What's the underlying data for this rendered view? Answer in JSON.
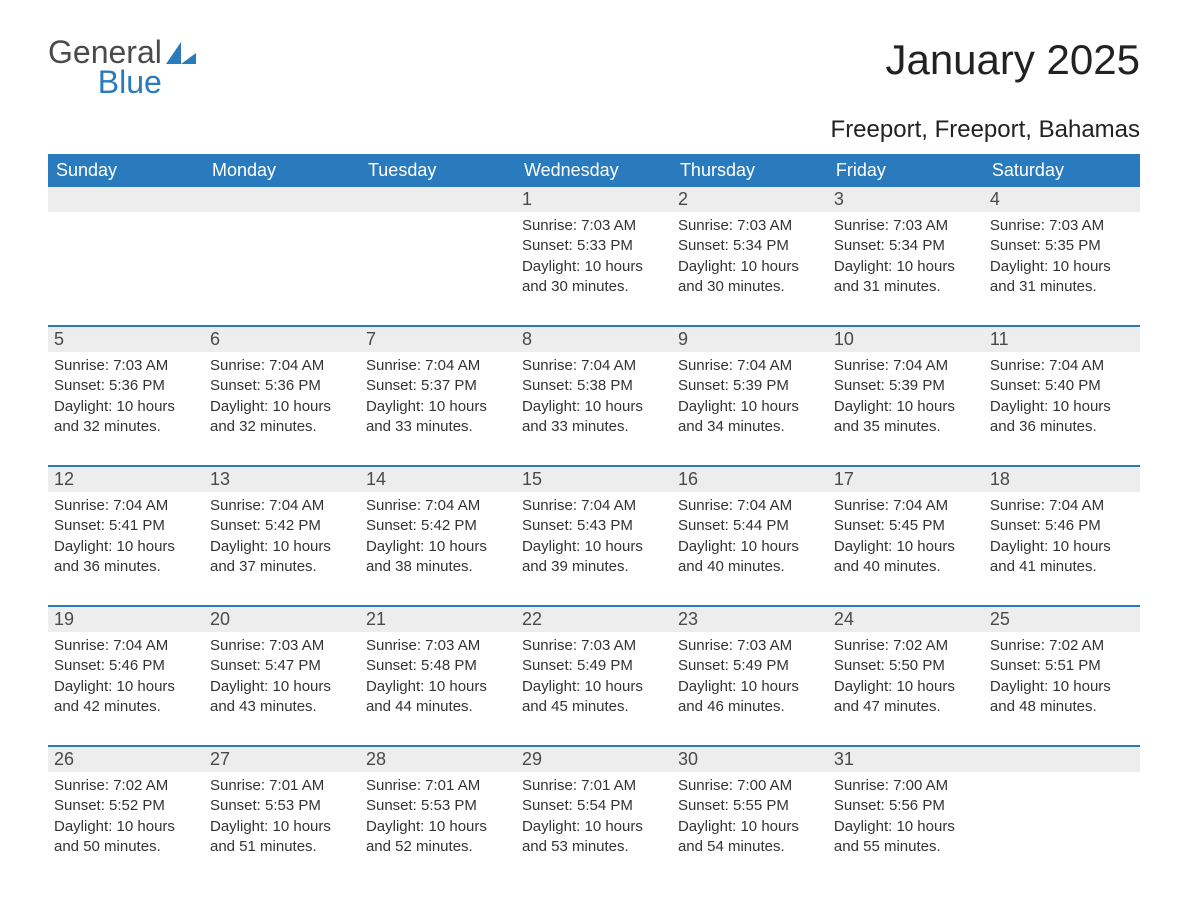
{
  "logo": {
    "line1": "General",
    "line2": "Blue"
  },
  "title": "January 2025",
  "subtitle": "Freeport, Freeport, Bahamas",
  "colors": {
    "brand_blue": "#2a7bbd",
    "header_text": "#ffffff",
    "day_num_bg": "#ededed",
    "day_num_text": "#4a4a4a",
    "body_text": "#333333",
    "page_bg": "#ffffff"
  },
  "typography": {
    "title_fontsize": 42,
    "subtitle_fontsize": 24,
    "header_fontsize": 18,
    "daynum_fontsize": 18,
    "body_fontsize": 15,
    "font_family": "Arial"
  },
  "layout": {
    "columns": 7,
    "rows": 5,
    "row_border_color": "#2a7bbd",
    "row_border_width": 2
  },
  "headers": [
    "Sunday",
    "Monday",
    "Tuesday",
    "Wednesday",
    "Thursday",
    "Friday",
    "Saturday"
  ],
  "weeks": [
    [
      null,
      null,
      null,
      {
        "n": "1",
        "sunrise": "Sunrise: 7:03 AM",
        "sunset": "Sunset: 5:33 PM",
        "daylight": "Daylight: 10 hours and 30 minutes."
      },
      {
        "n": "2",
        "sunrise": "Sunrise: 7:03 AM",
        "sunset": "Sunset: 5:34 PM",
        "daylight": "Daylight: 10 hours and 30 minutes."
      },
      {
        "n": "3",
        "sunrise": "Sunrise: 7:03 AM",
        "sunset": "Sunset: 5:34 PM",
        "daylight": "Daylight: 10 hours and 31 minutes."
      },
      {
        "n": "4",
        "sunrise": "Sunrise: 7:03 AM",
        "sunset": "Sunset: 5:35 PM",
        "daylight": "Daylight: 10 hours and 31 minutes."
      }
    ],
    [
      {
        "n": "5",
        "sunrise": "Sunrise: 7:03 AM",
        "sunset": "Sunset: 5:36 PM",
        "daylight": "Daylight: 10 hours and 32 minutes."
      },
      {
        "n": "6",
        "sunrise": "Sunrise: 7:04 AM",
        "sunset": "Sunset: 5:36 PM",
        "daylight": "Daylight: 10 hours and 32 minutes."
      },
      {
        "n": "7",
        "sunrise": "Sunrise: 7:04 AM",
        "sunset": "Sunset: 5:37 PM",
        "daylight": "Daylight: 10 hours and 33 minutes."
      },
      {
        "n": "8",
        "sunrise": "Sunrise: 7:04 AM",
        "sunset": "Sunset: 5:38 PM",
        "daylight": "Daylight: 10 hours and 33 minutes."
      },
      {
        "n": "9",
        "sunrise": "Sunrise: 7:04 AM",
        "sunset": "Sunset: 5:39 PM",
        "daylight": "Daylight: 10 hours and 34 minutes."
      },
      {
        "n": "10",
        "sunrise": "Sunrise: 7:04 AM",
        "sunset": "Sunset: 5:39 PM",
        "daylight": "Daylight: 10 hours and 35 minutes."
      },
      {
        "n": "11",
        "sunrise": "Sunrise: 7:04 AM",
        "sunset": "Sunset: 5:40 PM",
        "daylight": "Daylight: 10 hours and 36 minutes."
      }
    ],
    [
      {
        "n": "12",
        "sunrise": "Sunrise: 7:04 AM",
        "sunset": "Sunset: 5:41 PM",
        "daylight": "Daylight: 10 hours and 36 minutes."
      },
      {
        "n": "13",
        "sunrise": "Sunrise: 7:04 AM",
        "sunset": "Sunset: 5:42 PM",
        "daylight": "Daylight: 10 hours and 37 minutes."
      },
      {
        "n": "14",
        "sunrise": "Sunrise: 7:04 AM",
        "sunset": "Sunset: 5:42 PM",
        "daylight": "Daylight: 10 hours and 38 minutes."
      },
      {
        "n": "15",
        "sunrise": "Sunrise: 7:04 AM",
        "sunset": "Sunset: 5:43 PM",
        "daylight": "Daylight: 10 hours and 39 minutes."
      },
      {
        "n": "16",
        "sunrise": "Sunrise: 7:04 AM",
        "sunset": "Sunset: 5:44 PM",
        "daylight": "Daylight: 10 hours and 40 minutes."
      },
      {
        "n": "17",
        "sunrise": "Sunrise: 7:04 AM",
        "sunset": "Sunset: 5:45 PM",
        "daylight": "Daylight: 10 hours and 40 minutes."
      },
      {
        "n": "18",
        "sunrise": "Sunrise: 7:04 AM",
        "sunset": "Sunset: 5:46 PM",
        "daylight": "Daylight: 10 hours and 41 minutes."
      }
    ],
    [
      {
        "n": "19",
        "sunrise": "Sunrise: 7:04 AM",
        "sunset": "Sunset: 5:46 PM",
        "daylight": "Daylight: 10 hours and 42 minutes."
      },
      {
        "n": "20",
        "sunrise": "Sunrise: 7:03 AM",
        "sunset": "Sunset: 5:47 PM",
        "daylight": "Daylight: 10 hours and 43 minutes."
      },
      {
        "n": "21",
        "sunrise": "Sunrise: 7:03 AM",
        "sunset": "Sunset: 5:48 PM",
        "daylight": "Daylight: 10 hours and 44 minutes."
      },
      {
        "n": "22",
        "sunrise": "Sunrise: 7:03 AM",
        "sunset": "Sunset: 5:49 PM",
        "daylight": "Daylight: 10 hours and 45 minutes."
      },
      {
        "n": "23",
        "sunrise": "Sunrise: 7:03 AM",
        "sunset": "Sunset: 5:49 PM",
        "daylight": "Daylight: 10 hours and 46 minutes."
      },
      {
        "n": "24",
        "sunrise": "Sunrise: 7:02 AM",
        "sunset": "Sunset: 5:50 PM",
        "daylight": "Daylight: 10 hours and 47 minutes."
      },
      {
        "n": "25",
        "sunrise": "Sunrise: 7:02 AM",
        "sunset": "Sunset: 5:51 PM",
        "daylight": "Daylight: 10 hours and 48 minutes."
      }
    ],
    [
      {
        "n": "26",
        "sunrise": "Sunrise: 7:02 AM",
        "sunset": "Sunset: 5:52 PM",
        "daylight": "Daylight: 10 hours and 50 minutes."
      },
      {
        "n": "27",
        "sunrise": "Sunrise: 7:01 AM",
        "sunset": "Sunset: 5:53 PM",
        "daylight": "Daylight: 10 hours and 51 minutes."
      },
      {
        "n": "28",
        "sunrise": "Sunrise: 7:01 AM",
        "sunset": "Sunset: 5:53 PM",
        "daylight": "Daylight: 10 hours and 52 minutes."
      },
      {
        "n": "29",
        "sunrise": "Sunrise: 7:01 AM",
        "sunset": "Sunset: 5:54 PM",
        "daylight": "Daylight: 10 hours and 53 minutes."
      },
      {
        "n": "30",
        "sunrise": "Sunrise: 7:00 AM",
        "sunset": "Sunset: 5:55 PM",
        "daylight": "Daylight: 10 hours and 54 minutes."
      },
      {
        "n": "31",
        "sunrise": "Sunrise: 7:00 AM",
        "sunset": "Sunset: 5:56 PM",
        "daylight": "Daylight: 10 hours and 55 minutes."
      },
      null
    ]
  ]
}
